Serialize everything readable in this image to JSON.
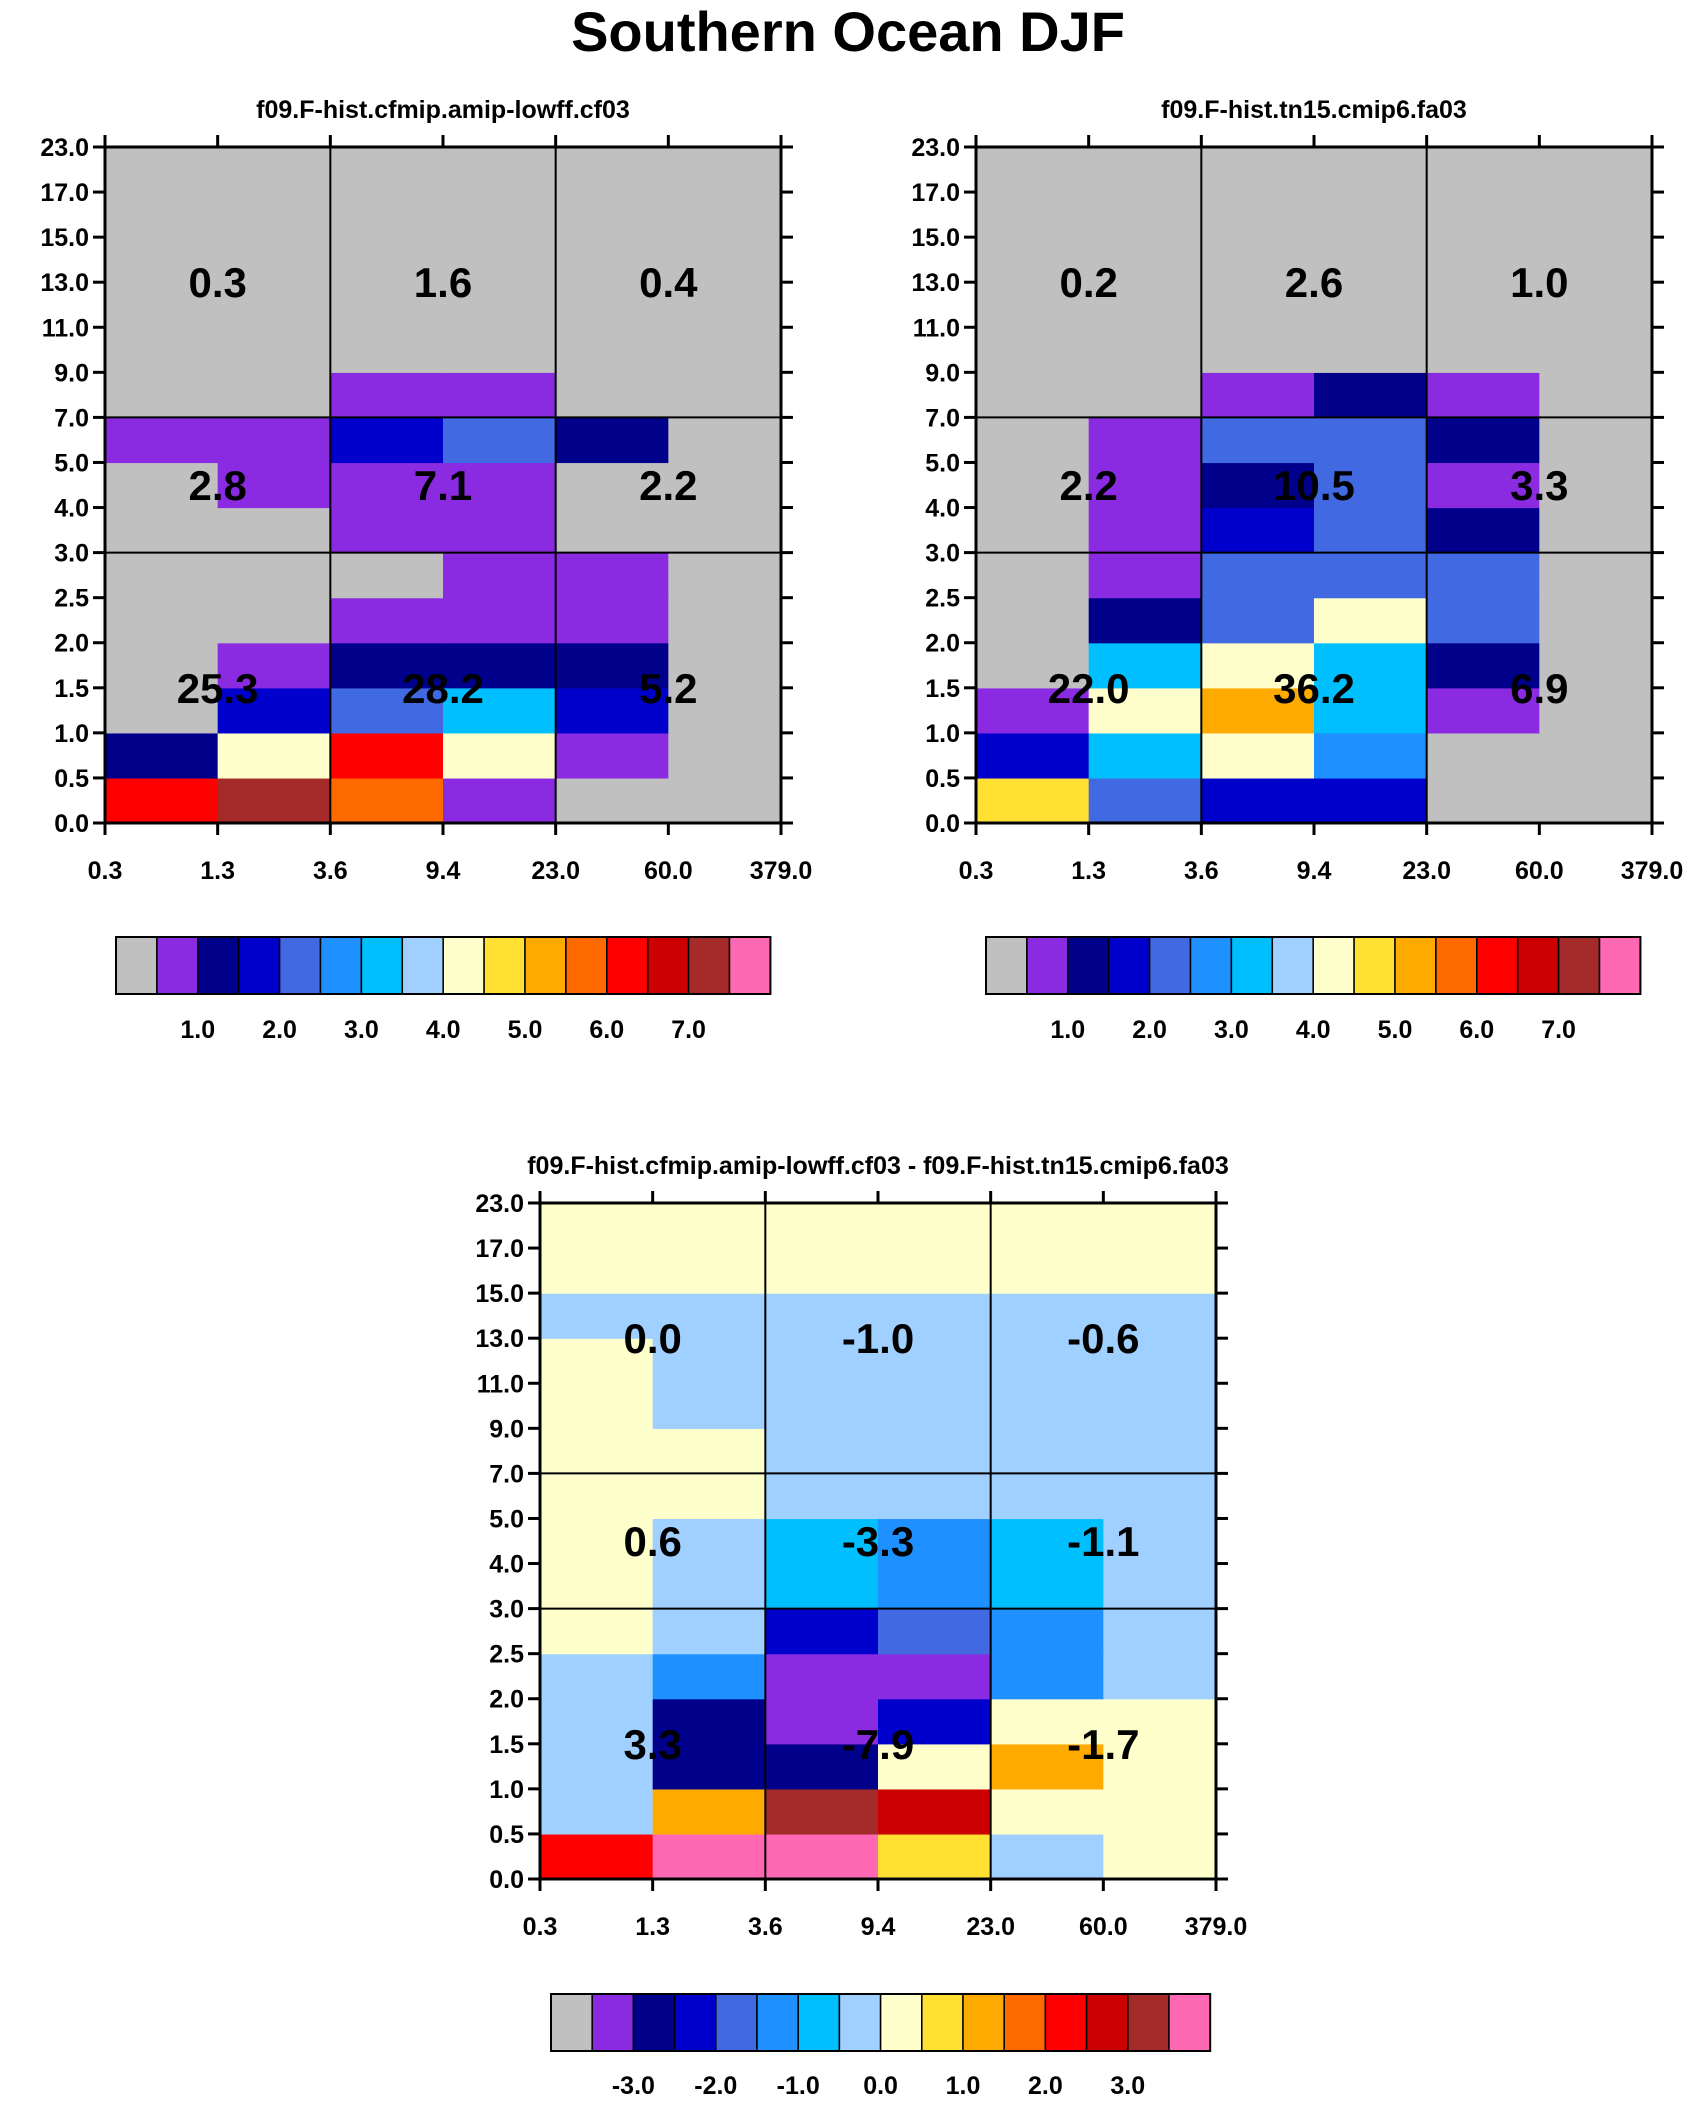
{
  "title": "Southern Ocean DJF",
  "chart_data": {
    "type": "heatmap",
    "x_tick_labels": [
      "0.3",
      "1.3",
      "3.6",
      "9.4",
      "23.0",
      "60.0",
      "379.0"
    ],
    "y_tick_labels": [
      "0.0",
      "0.5",
      "1.0",
      "1.5",
      "2.0",
      "2.5",
      "3.0",
      "4.0",
      "5.0",
      "7.0",
      "9.0",
      "11.0",
      "13.0",
      "15.0",
      "17.0",
      "23.0"
    ],
    "grid_note": "cells indexed [row][col], row 0 = bottom (0.0-0.5), col 0 = leftmost (0.3-1.3); values are colorbar level indices",
    "panels": [
      {
        "id": "panel-a",
        "title": "f09.F-hist.cfmip.amip-lowff.cf03",
        "cells": [
          [
            12,
            14,
            11,
            1,
            0,
            0
          ],
          [
            2,
            8,
            12,
            8,
            1,
            0
          ],
          [
            0,
            3,
            4,
            6,
            3,
            0
          ],
          [
            0,
            1,
            2,
            2,
            2,
            0
          ],
          [
            0,
            0,
            1,
            1,
            1,
            0
          ],
          [
            0,
            0,
            0,
            1,
            1,
            0
          ],
          [
            0,
            0,
            1,
            1,
            0,
            0
          ],
          [
            0,
            1,
            1,
            1,
            0,
            0
          ],
          [
            1,
            1,
            3,
            4,
            2,
            0
          ],
          [
            0,
            0,
            1,
            1,
            0,
            0
          ],
          [
            0,
            0,
            0,
            0,
            0,
            0
          ],
          [
            0,
            0,
            0,
            0,
            0,
            0
          ],
          [
            0,
            0,
            0,
            0,
            0,
            0
          ],
          [
            0,
            0,
            0,
            0,
            0,
            0
          ],
          [
            0,
            0,
            0,
            0,
            0,
            0
          ]
        ],
        "summary": [
          [
            "25.3",
            "28.2",
            "5.2"
          ],
          [
            "2.8",
            "7.1",
            "2.2"
          ],
          [
            "0.3",
            "1.6",
            "0.4"
          ]
        ],
        "colorbar_labels": [
          "1.0",
          "2.0",
          "3.0",
          "4.0",
          "5.0",
          "6.0",
          "7.0"
        ]
      },
      {
        "id": "panel-b",
        "title": "f09.F-hist.tn15.cmip6.fa03",
        "cells": [
          [
            9,
            4,
            3,
            3,
            0,
            0
          ],
          [
            3,
            6,
            8,
            5,
            0,
            0
          ],
          [
            1,
            8,
            10,
            6,
            1,
            0
          ],
          [
            0,
            6,
            8,
            6,
            2,
            0
          ],
          [
            0,
            2,
            4,
            8,
            4,
            0
          ],
          [
            0,
            1,
            4,
            4,
            4,
            0
          ],
          [
            0,
            1,
            3,
            4,
            2,
            0
          ],
          [
            0,
            1,
            2,
            4,
            1,
            0
          ],
          [
            0,
            1,
            4,
            4,
            2,
            0
          ],
          [
            0,
            0,
            1,
            2,
            1,
            0
          ],
          [
            0,
            0,
            0,
            0,
            0,
            0
          ],
          [
            0,
            0,
            0,
            0,
            0,
            0
          ],
          [
            0,
            0,
            0,
            0,
            0,
            0
          ],
          [
            0,
            0,
            0,
            0,
            0,
            0
          ],
          [
            0,
            0,
            0,
            0,
            0,
            0
          ]
        ],
        "summary": [
          [
            "22.0",
            "36.2",
            "6.9"
          ],
          [
            "2.2",
            "10.5",
            "3.3"
          ],
          [
            "0.2",
            "2.6",
            "1.0"
          ]
        ],
        "colorbar_labels": [
          "1.0",
          "2.0",
          "3.0",
          "4.0",
          "5.0",
          "6.0",
          "7.0"
        ]
      },
      {
        "id": "panel-c",
        "title": "f09.F-hist.cfmip.amip-lowff.cf03 - f09.F-hist.tn15.cmip6.fa03",
        "cells": [
          [
            12,
            16,
            16,
            9,
            7,
            8
          ],
          [
            7,
            10,
            14,
            13,
            8,
            8
          ],
          [
            7,
            2,
            2,
            8,
            10,
            8
          ],
          [
            7,
            2,
            1,
            3,
            8,
            8
          ],
          [
            7,
            5,
            1,
            1,
            5,
            7
          ],
          [
            8,
            7,
            3,
            4,
            5,
            7
          ],
          [
            8,
            7,
            6,
            5,
            6,
            7
          ],
          [
            8,
            7,
            6,
            5,
            6,
            7
          ],
          [
            8,
            8,
            7,
            7,
            7,
            7
          ],
          [
            8,
            8,
            7,
            7,
            7,
            7
          ],
          [
            8,
            7,
            7,
            7,
            7,
            7
          ],
          [
            8,
            7,
            7,
            7,
            7,
            7
          ],
          [
            7,
            7,
            7,
            7,
            7,
            7
          ],
          [
            8,
            8,
            8,
            8,
            8,
            8
          ],
          [
            8,
            8,
            8,
            8,
            8,
            8
          ]
        ],
        "summary": [
          [
            "3.3",
            "-7.9",
            "-1.7"
          ],
          [
            "0.6",
            "-3.3",
            "-1.1"
          ],
          [
            "0.0",
            "-1.0",
            "-0.6"
          ]
        ],
        "colorbar_labels": [
          "-3.0",
          "-2.0",
          "-1.0",
          "0.0",
          "1.0",
          "2.0",
          "3.0"
        ]
      }
    ],
    "colors": {
      "palette_main": [
        "#c0c0c0",
        "#8a2be2",
        "#00008b",
        "#0000cd",
        "#4169e1",
        "#1e90ff",
        "#00bfff",
        "#a0d0ff",
        "#ffffcc",
        "#ffe033",
        "#ffaa00",
        "#ff6a00",
        "#ff0000",
        "#cc0000",
        "#a52a2a",
        "#ff69b4"
      ],
      "palette_diff": [
        "#c0c0c0",
        "#8a2be2",
        "#00008b",
        "#0000cd",
        "#4169e1",
        "#1e90ff",
        "#00bfff",
        "#a0d0ff",
        "#ffffcc",
        "#ffe033",
        "#ffaa00",
        "#ff6a00",
        "#ff0000",
        "#cc0000",
        "#a52a2a",
        "#ff69b4",
        "#ff69b4"
      ]
    }
  }
}
